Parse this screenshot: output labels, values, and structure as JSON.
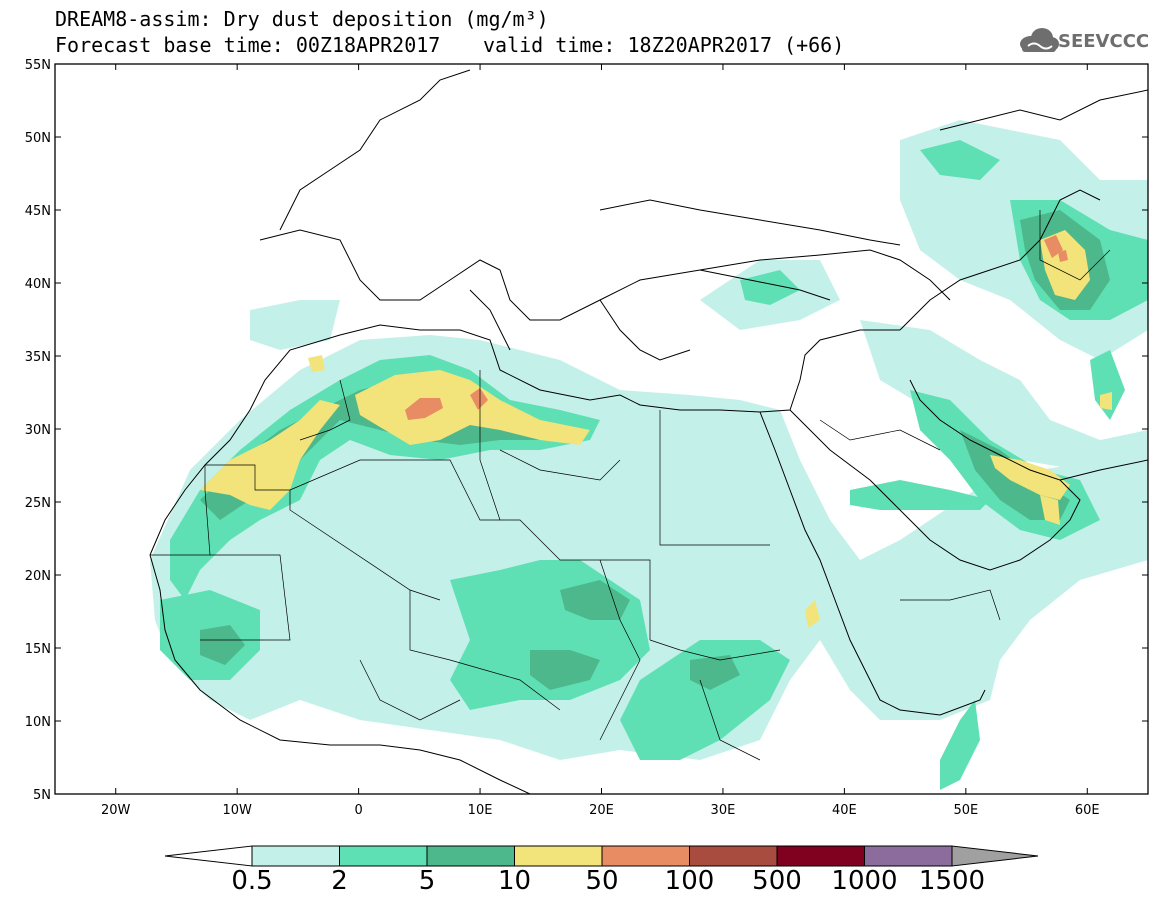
{
  "header": {
    "title_line1": "DREAM8-assim: Dry dust deposition (mg/m³)",
    "title_line2": "Forecast base time: 00Z18APR2017",
    "title_line3": "valid time: 18Z20APR2017 (+66)",
    "logo_text": "SEEVCCC"
  },
  "map": {
    "lat_labels": [
      "55N",
      "50N",
      "45N",
      "40N",
      "35N",
      "30N",
      "25N",
      "20N",
      "15N",
      "10N",
      "5N"
    ],
    "lon_labels": [
      "20W",
      "10W",
      "0",
      "10E",
      "20E",
      "30E",
      "40E",
      "50E",
      "60E"
    ],
    "lat_range": [
      5,
      55
    ],
    "lon_range": [
      -25,
      65
    ]
  },
  "colorbar": {
    "labels": [
      "0.5",
      "2",
      "5",
      "10",
      "50",
      "100",
      "500",
      "1000",
      "1500"
    ],
    "colors": [
      "#c4f0ea",
      "#5ee0b4",
      "#4cb88c",
      "#f2e47a",
      "#e88c64",
      "#a84c40",
      "#800020",
      "#8c6c9c",
      "#a0a0a0"
    ]
  }
}
